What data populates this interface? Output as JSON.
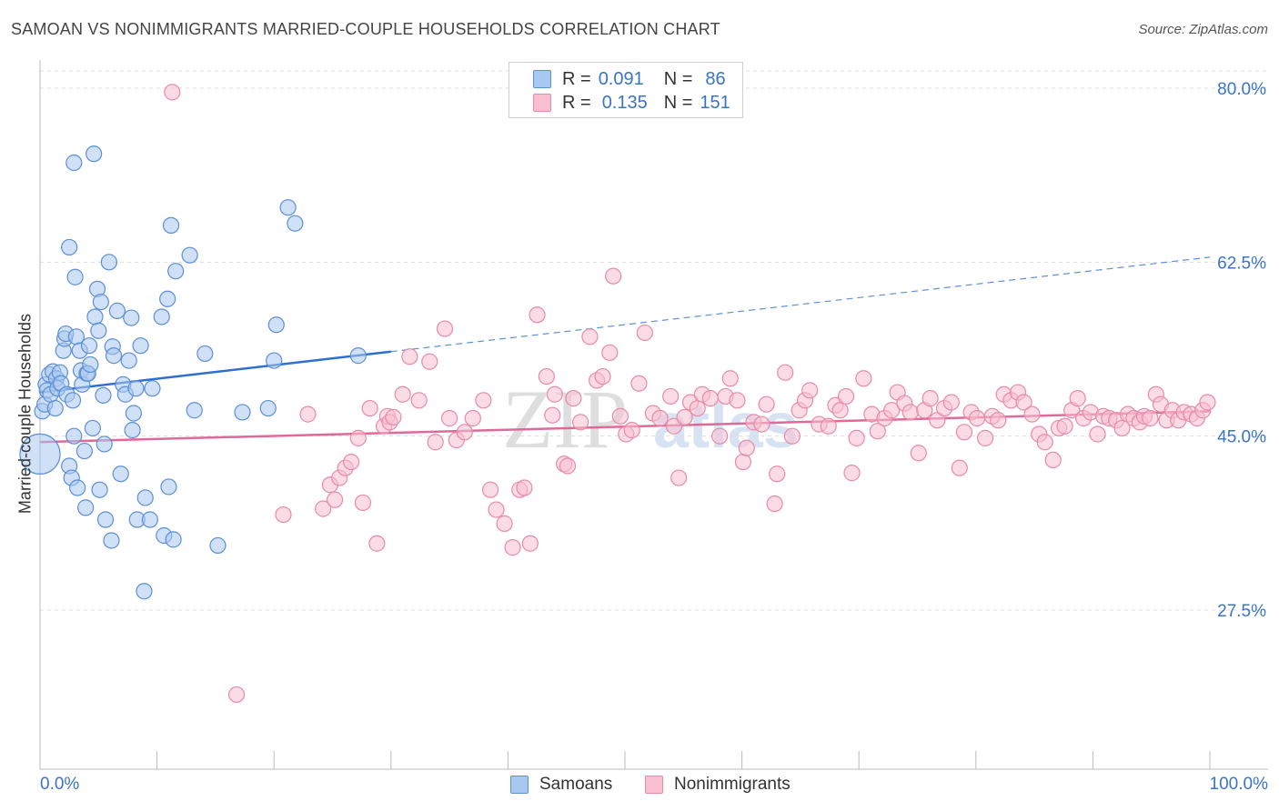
{
  "title": "SAMOAN VS NONIMMIGRANTS MARRIED-COUPLE HOUSEHOLDS CORRELATION CHART",
  "source": "Source: ZipAtlas.com",
  "legend": {
    "rows": [
      {
        "r_label": "R =",
        "r_value": "0.091",
        "n_label": "N =",
        "n_value": "86",
        "color": "#a9c8f0",
        "border": "#5b8fd6"
      },
      {
        "r_label": "R =",
        "r_value": "0.135",
        "n_label": "N =",
        "n_value": "151",
        "color": "#f7bfd0",
        "border": "#e88aa8"
      }
    ]
  },
  "bottom_legend": [
    {
      "label": "Samoans",
      "color": "#a9c8f0",
      "border": "#5b8fd6"
    },
    {
      "label": "Nonimmigrants",
      "color": "#f7bfd0",
      "border": "#e88aa8"
    }
  ],
  "watermark": {
    "part1": "ZIP",
    "part2": "atlas"
  },
  "chart_data": {
    "type": "scatter",
    "ylabel": "Married-couple Households",
    "xlabel": "",
    "x_tick_labels": [
      "0.0%",
      "100.0%"
    ],
    "y_tick_labels": [
      "80.0%",
      "62.5%",
      "45.0%",
      "27.5%"
    ],
    "y_ticks": [
      80.0,
      62.5,
      45.0,
      27.5
    ],
    "xlim": [
      0,
      100
    ],
    "ylim": [
      12.0,
      82.5
    ],
    "grid": true,
    "series": [
      {
        "name": "Samoans",
        "color": "#5b8fd6",
        "fill": "#a9c8f0",
        "trend": {
          "x0": 0,
          "y0": 49.4,
          "x1": 30,
          "y1": 53.5,
          "dash_x1": 100,
          "dash_y1": 63.0
        },
        "points": [
          [
            0.0,
            43.2
          ],
          [
            0.2,
            47.5
          ],
          [
            0.4,
            48.2
          ],
          [
            0.5,
            50.2
          ],
          [
            0.6,
            49.6
          ],
          [
            0.8,
            51.2
          ],
          [
            0.9,
            49.2
          ],
          [
            1.1,
            51.5
          ],
          [
            1.3,
            47.8
          ],
          [
            1.4,
            50.8
          ],
          [
            1.5,
            49.8
          ],
          [
            1.7,
            51.4
          ],
          [
            1.8,
            50.3
          ],
          [
            2.0,
            53.6
          ],
          [
            2.1,
            54.8
          ],
          [
            2.2,
            55.3
          ],
          [
            2.3,
            49.2
          ],
          [
            2.5,
            42.0
          ],
          [
            2.5,
            64.0
          ],
          [
            2.7,
            40.8
          ],
          [
            2.8,
            48.6
          ],
          [
            2.9,
            72.5
          ],
          [
            2.9,
            45.0
          ],
          [
            3.0,
            61.0
          ],
          [
            3.1,
            55.0
          ],
          [
            3.2,
            39.8
          ],
          [
            3.4,
            53.6
          ],
          [
            3.5,
            51.6
          ],
          [
            3.6,
            50.2
          ],
          [
            3.8,
            43.5
          ],
          [
            3.9,
            37.8
          ],
          [
            4.0,
            51.3
          ],
          [
            4.1,
            51.3
          ],
          [
            4.2,
            54.1
          ],
          [
            4.3,
            52.2
          ],
          [
            4.5,
            45.8
          ],
          [
            4.6,
            73.4
          ],
          [
            4.7,
            57.0
          ],
          [
            4.9,
            59.8
          ],
          [
            5.0,
            55.6
          ],
          [
            5.1,
            39.6
          ],
          [
            5.2,
            58.5
          ],
          [
            5.4,
            49.1
          ],
          [
            5.5,
            44.2
          ],
          [
            5.6,
            36.6
          ],
          [
            5.9,
            62.5
          ],
          [
            6.1,
            34.5
          ],
          [
            6.2,
            54.0
          ],
          [
            6.3,
            53.1
          ],
          [
            6.6,
            57.6
          ],
          [
            6.9,
            41.2
          ],
          [
            7.1,
            50.2
          ],
          [
            7.3,
            49.2
          ],
          [
            7.6,
            52.6
          ],
          [
            7.8,
            56.9
          ],
          [
            7.9,
            45.6
          ],
          [
            8.0,
            47.3
          ],
          [
            8.2,
            49.8
          ],
          [
            8.3,
            36.6
          ],
          [
            8.6,
            54.1
          ],
          [
            8.9,
            29.4
          ],
          [
            9.0,
            38.8
          ],
          [
            9.4,
            36.6
          ],
          [
            9.6,
            49.8
          ],
          [
            10.4,
            57.0
          ],
          [
            10.6,
            35.0
          ],
          [
            10.9,
            58.8
          ],
          [
            11.0,
            39.9
          ],
          [
            11.2,
            66.2
          ],
          [
            11.4,
            34.6
          ],
          [
            11.6,
            61.6
          ],
          [
            12.8,
            63.2
          ],
          [
            13.2,
            47.6
          ],
          [
            14.1,
            53.3
          ],
          [
            15.2,
            34.0
          ],
          [
            17.3,
            47.4
          ],
          [
            19.5,
            47.8
          ],
          [
            20.0,
            52.6
          ],
          [
            20.2,
            56.2
          ],
          [
            21.2,
            68.0
          ],
          [
            21.8,
            66.4
          ],
          [
            27.2,
            53.1
          ]
        ]
      },
      {
        "name": "Nonimmigrants",
        "color": "#e88aa8",
        "fill": "#f7bfd0",
        "trend": {
          "x0": 0,
          "y0": 44.4,
          "x1": 100,
          "y1": 47.5
        },
        "points": [
          [
            11.3,
            79.6
          ],
          [
            16.8,
            19.0
          ],
          [
            20.8,
            37.1
          ],
          [
            22.9,
            47.2
          ],
          [
            24.2,
            37.7
          ],
          [
            24.8,
            40.1
          ],
          [
            25.2,
            38.6
          ],
          [
            25.6,
            40.8
          ],
          [
            26.1,
            41.8
          ],
          [
            26.6,
            42.4
          ],
          [
            27.2,
            44.8
          ],
          [
            27.6,
            38.3
          ],
          [
            28.2,
            47.8
          ],
          [
            28.8,
            34.2
          ],
          [
            29.4,
            46.0
          ],
          [
            29.7,
            47.0
          ],
          [
            29.9,
            46.4
          ],
          [
            30.2,
            46.9
          ],
          [
            31.0,
            49.2
          ],
          [
            31.6,
            53.0
          ],
          [
            32.4,
            48.6
          ],
          [
            33.3,
            52.5
          ],
          [
            33.8,
            44.4
          ],
          [
            34.6,
            55.8
          ],
          [
            35.0,
            46.8
          ],
          [
            35.6,
            44.6
          ],
          [
            36.3,
            45.4
          ],
          [
            37.0,
            46.8
          ],
          [
            37.9,
            48.6
          ],
          [
            38.5,
            39.6
          ],
          [
            39.0,
            37.6
          ],
          [
            39.7,
            36.2
          ],
          [
            40.4,
            33.8
          ],
          [
            41.0,
            39.6
          ],
          [
            41.4,
            39.8
          ],
          [
            41.9,
            34.2
          ],
          [
            42.5,
            57.2
          ],
          [
            43.3,
            51.0
          ],
          [
            43.8,
            47.1
          ],
          [
            44.0,
            49.2
          ],
          [
            44.8,
            42.2
          ],
          [
            45.1,
            42.0
          ],
          [
            45.6,
            48.8
          ],
          [
            46.2,
            46.4
          ],
          [
            47.0,
            55.0
          ],
          [
            47.6,
            50.6
          ],
          [
            48.1,
            51.0
          ],
          [
            48.7,
            53.4
          ],
          [
            49.0,
            61.1
          ],
          [
            49.6,
            47.0
          ],
          [
            50.1,
            45.2
          ],
          [
            50.6,
            45.6
          ],
          [
            51.2,
            50.3
          ],
          [
            51.7,
            55.4
          ],
          [
            52.4,
            47.3
          ],
          [
            53.0,
            46.8
          ],
          [
            53.9,
            49.0
          ],
          [
            54.2,
            46.0
          ],
          [
            54.6,
            40.8
          ],
          [
            55.1,
            46.9
          ],
          [
            55.6,
            48.4
          ],
          [
            56.2,
            47.8
          ],
          [
            56.6,
            49.2
          ],
          [
            57.3,
            48.8
          ],
          [
            58.1,
            45.0
          ],
          [
            58.6,
            49.0
          ],
          [
            59.0,
            50.8
          ],
          [
            59.6,
            48.6
          ],
          [
            60.1,
            42.4
          ],
          [
            60.4,
            43.8
          ],
          [
            61.0,
            46.4
          ],
          [
            61.7,
            46.2
          ],
          [
            62.1,
            48.2
          ],
          [
            62.8,
            38.2
          ],
          [
            63.0,
            41.2
          ],
          [
            63.7,
            51.4
          ],
          [
            64.3,
            45.0
          ],
          [
            64.9,
            47.6
          ],
          [
            65.4,
            48.6
          ],
          [
            65.8,
            49.6
          ],
          [
            66.6,
            46.2
          ],
          [
            67.4,
            46.0
          ],
          [
            68.0,
            48.1
          ],
          [
            68.4,
            47.6
          ],
          [
            68.9,
            49.0
          ],
          [
            69.4,
            41.3
          ],
          [
            69.8,
            44.8
          ],
          [
            70.4,
            50.8
          ],
          [
            71.1,
            47.2
          ],
          [
            71.6,
            45.5
          ],
          [
            72.2,
            46.8
          ],
          [
            72.8,
            47.6
          ],
          [
            73.3,
            49.4
          ],
          [
            73.9,
            48.3
          ],
          [
            74.4,
            47.4
          ],
          [
            75.1,
            43.3
          ],
          [
            75.6,
            47.6
          ],
          [
            76.1,
            48.8
          ],
          [
            76.7,
            46.6
          ],
          [
            77.3,
            47.8
          ],
          [
            77.9,
            48.4
          ],
          [
            78.6,
            41.8
          ],
          [
            79.0,
            45.4
          ],
          [
            79.6,
            47.4
          ],
          [
            80.1,
            46.8
          ],
          [
            80.8,
            44.8
          ],
          [
            81.4,
            47.0
          ],
          [
            81.9,
            46.6
          ],
          [
            82.4,
            49.2
          ],
          [
            83.0,
            48.6
          ],
          [
            83.6,
            49.4
          ],
          [
            84.1,
            48.4
          ],
          [
            84.8,
            47.2
          ],
          [
            85.4,
            45.2
          ],
          [
            85.9,
            44.4
          ],
          [
            86.6,
            42.6
          ],
          [
            87.1,
            45.8
          ],
          [
            87.6,
            46.0
          ],
          [
            88.2,
            47.6
          ],
          [
            88.7,
            48.8
          ],
          [
            89.2,
            46.8
          ],
          [
            89.8,
            47.4
          ],
          [
            90.4,
            45.2
          ],
          [
            90.9,
            47.0
          ],
          [
            91.4,
            46.8
          ],
          [
            92.0,
            46.6
          ],
          [
            92.5,
            45.8
          ],
          [
            93.0,
            47.2
          ],
          [
            93.5,
            46.8
          ],
          [
            94.0,
            46.4
          ],
          [
            94.4,
            47.0
          ],
          [
            94.9,
            46.8
          ],
          [
            95.4,
            49.2
          ],
          [
            95.8,
            48.2
          ],
          [
            96.3,
            46.6
          ],
          [
            96.8,
            47.6
          ],
          [
            97.3,
            46.6
          ],
          [
            97.8,
            47.4
          ],
          [
            98.4,
            47.2
          ],
          [
            98.9,
            46.8
          ],
          [
            99.4,
            47.6
          ],
          [
            99.8,
            48.4
          ]
        ]
      }
    ]
  }
}
